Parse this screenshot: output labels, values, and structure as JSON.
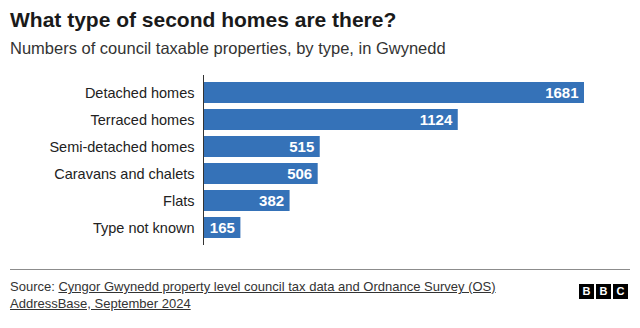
{
  "chart_data": {
    "type": "bar",
    "orientation": "horizontal",
    "title": "What type of second homes are there?",
    "subtitle": "Numbers of council taxable properties, by type, in Gwynedd",
    "categories": [
      "Detached homes",
      "Terraced homes",
      "Semi-detached homes",
      "Caravans and chalets",
      "Flats",
      "Type not known"
    ],
    "values": [
      1681,
      1124,
      515,
      506,
      382,
      165
    ],
    "color": "#3572b8",
    "xlim": [
      0,
      1681
    ],
    "data_labels": true,
    "tick_labels": "y",
    "grid": false,
    "source_prefix": "Source: ",
    "source": "Cyngor Gwynedd property level council tax data and Ordnance Survey (OS) AddressBase, September 2024",
    "logo": "BBC"
  }
}
